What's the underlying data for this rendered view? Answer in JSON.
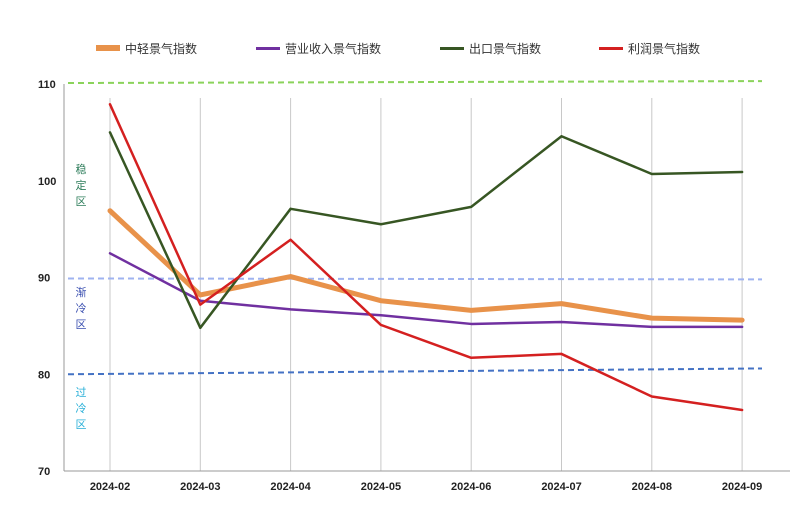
{
  "chart_data": {
    "type": "line",
    "categories": [
      "2024-02",
      "2024-03",
      "2024-04",
      "2024-05",
      "2024-06",
      "2024-07",
      "2024-08",
      "2024-09"
    ],
    "ylim": [
      70,
      110
    ],
    "yticks": [
      "70",
      "80",
      "90",
      "100",
      "110"
    ],
    "grid": "vertical",
    "legend_position": "top",
    "series": [
      {
        "name": "中轻景气指数",
        "color": "#E8924A",
        "values": [
          96.9,
          88.2,
          90.1,
          87.6,
          86.6,
          87.3,
          85.8,
          85.6
        ]
      },
      {
        "name": "营业收入景气指数",
        "color": "#7030A0",
        "values": [
          92.5,
          87.6,
          86.7,
          86.1,
          85.2,
          85.4,
          84.9,
          84.9
        ]
      },
      {
        "name": "出口景气指数",
        "color": "#375623",
        "values": [
          105.0,
          84.8,
          97.1,
          95.5,
          97.3,
          104.6,
          100.7,
          100.9
        ]
      },
      {
        "name": "利润景气指数",
        "color": "#D42020",
        "values": [
          107.9,
          87.2,
          93.9,
          85.1,
          81.7,
          82.1,
          77.7,
          76.3
        ]
      }
    ],
    "reference_lines": [
      {
        "name": "110",
        "start": 110.1,
        "end": 110.3,
        "color": "#8BD35B"
      },
      {
        "name": "90",
        "start": 89.9,
        "end": 89.8,
        "color": "#9FB3F0"
      },
      {
        "name": "80",
        "start": 80.0,
        "end": 80.6,
        "color": "#4472C4"
      }
    ],
    "zones": [
      {
        "label": [
          "稳",
          "定",
          "区"
        ],
        "color": "#2E7D5B"
      },
      {
        "label": [
          "渐",
          "冷",
          "区"
        ],
        "color": "#3A4FB0"
      },
      {
        "label": [
          "过",
          "冷",
          "区"
        ],
        "color": "#2AB0D8"
      }
    ]
  }
}
